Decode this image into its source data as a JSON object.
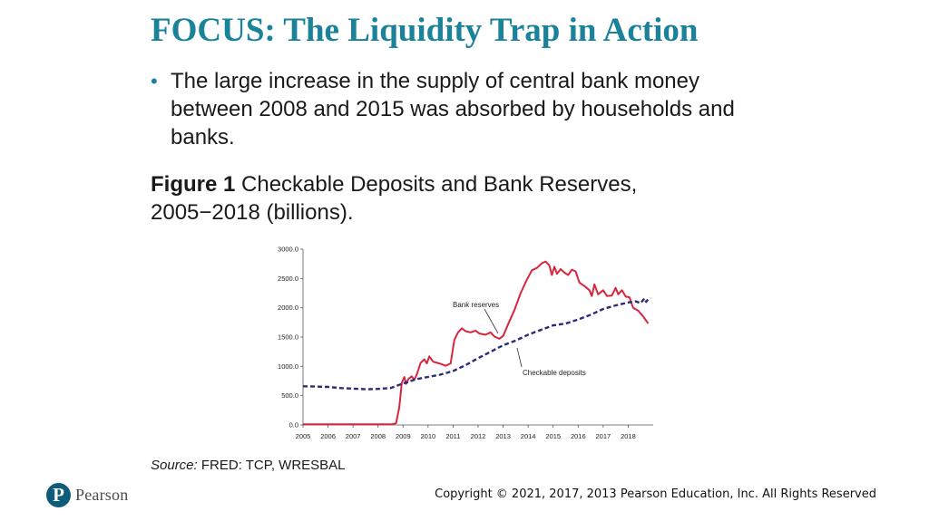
{
  "slide": {
    "title": "FOCUS: The Liquidity Trap in Action",
    "bullet": "The large increase in the supply of central bank money between 2008 and 2015 was absorbed by households and banks.",
    "figure_label": "Figure 1",
    "figure_caption": "Checkable Deposits and Bank Reserves, 2005−2018 (billions).",
    "source_label": "Source:",
    "source_text": "FRED: TCP, WRESBAL",
    "logo_text": "Pearson",
    "logo_mark": "P",
    "copyright": "Copyright © 2021, 2017, 2013 Pearson Education, Inc. All Rights Reserved"
  },
  "colors": {
    "title": "#1a8399",
    "bank_reserves": "#d7263d",
    "checkable_deposits": "#2e2a7a",
    "logo": "#0c5c7a"
  },
  "chart_data": {
    "type": "line",
    "title": "",
    "xlabel": "",
    "ylabel": "",
    "xlim": [
      2005,
      2019
    ],
    "ylim": [
      0,
      3000
    ],
    "x_ticks": [
      "2005",
      "2006",
      "2007",
      "2008",
      "2009",
      "2010",
      "2011",
      "2012",
      "2013",
      "2014",
      "2015",
      "2016",
      "2017",
      "2018"
    ],
    "y_ticks": [
      "0.0",
      "500.0",
      "1000.0",
      "1500.0",
      "2000.0",
      "2500.0",
      "3000.0"
    ],
    "annotations": [
      "Bank reserves",
      "Checkable deposits"
    ],
    "series": [
      {
        "name": "Bank reserves",
        "style": "solid",
        "color": "#d7263d",
        "points": [
          [
            2005.0,
            12
          ],
          [
            2006.0,
            12
          ],
          [
            2007.0,
            12
          ],
          [
            2008.0,
            12
          ],
          [
            2008.55,
            12
          ],
          [
            2008.72,
            30
          ],
          [
            2008.85,
            300
          ],
          [
            2008.95,
            720
          ],
          [
            2009.05,
            820
          ],
          [
            2009.12,
            700
          ],
          [
            2009.22,
            790
          ],
          [
            2009.35,
            830
          ],
          [
            2009.45,
            770
          ],
          [
            2009.55,
            860
          ],
          [
            2009.7,
            1060
          ],
          [
            2009.85,
            1120
          ],
          [
            2009.95,
            1050
          ],
          [
            2010.05,
            1170
          ],
          [
            2010.2,
            1080
          ],
          [
            2010.45,
            1050
          ],
          [
            2010.7,
            1010
          ],
          [
            2010.9,
            1050
          ],
          [
            2011.05,
            1450
          ],
          [
            2011.2,
            1580
          ],
          [
            2011.35,
            1650
          ],
          [
            2011.5,
            1600
          ],
          [
            2011.7,
            1580
          ],
          [
            2011.9,
            1610
          ],
          [
            2012.05,
            1560
          ],
          [
            2012.3,
            1540
          ],
          [
            2012.5,
            1580
          ],
          [
            2012.65,
            1510
          ],
          [
            2012.85,
            1470
          ],
          [
            2013.0,
            1520
          ],
          [
            2013.2,
            1720
          ],
          [
            2013.45,
            1960
          ],
          [
            2013.7,
            2250
          ],
          [
            2013.95,
            2480
          ],
          [
            2014.15,
            2640
          ],
          [
            2014.35,
            2680
          ],
          [
            2014.55,
            2760
          ],
          [
            2014.7,
            2790
          ],
          [
            2014.85,
            2720
          ],
          [
            2014.95,
            2560
          ],
          [
            2015.05,
            2700
          ],
          [
            2015.15,
            2580
          ],
          [
            2015.3,
            2660
          ],
          [
            2015.45,
            2600
          ],
          [
            2015.6,
            2560
          ],
          [
            2015.75,
            2650
          ],
          [
            2015.9,
            2620
          ],
          [
            2016.05,
            2430
          ],
          [
            2016.25,
            2370
          ],
          [
            2016.45,
            2300
          ],
          [
            2016.55,
            2200
          ],
          [
            2016.65,
            2400
          ],
          [
            2016.8,
            2230
          ],
          [
            2017.0,
            2300
          ],
          [
            2017.15,
            2200
          ],
          [
            2017.35,
            2210
          ],
          [
            2017.5,
            2340
          ],
          [
            2017.6,
            2230
          ],
          [
            2017.75,
            2300
          ],
          [
            2017.9,
            2190
          ],
          [
            2018.05,
            2180
          ],
          [
            2018.2,
            2000
          ],
          [
            2018.4,
            1950
          ],
          [
            2018.6,
            1850
          ],
          [
            2018.8,
            1730
          ]
        ]
      },
      {
        "name": "Checkable deposits",
        "style": "dashed",
        "color": "#2e2a7a",
        "points": [
          [
            2005.0,
            660
          ],
          [
            2005.5,
            655
          ],
          [
            2006.0,
            650
          ],
          [
            2006.5,
            630
          ],
          [
            2007.0,
            620
          ],
          [
            2007.5,
            610
          ],
          [
            2008.0,
            615
          ],
          [
            2008.5,
            630
          ],
          [
            2008.95,
            700
          ],
          [
            2009.25,
            740
          ],
          [
            2009.5,
            780
          ],
          [
            2009.75,
            800
          ],
          [
            2010.0,
            820
          ],
          [
            2010.5,
            860
          ],
          [
            2011.0,
            920
          ],
          [
            2011.5,
            1020
          ],
          [
            2012.0,
            1140
          ],
          [
            2012.5,
            1250
          ],
          [
            2013.0,
            1360
          ],
          [
            2013.5,
            1440
          ],
          [
            2014.0,
            1540
          ],
          [
            2014.5,
            1620
          ],
          [
            2015.0,
            1700
          ],
          [
            2015.5,
            1730
          ],
          [
            2016.0,
            1800
          ],
          [
            2016.5,
            1880
          ],
          [
            2017.0,
            1980
          ],
          [
            2017.5,
            2040
          ],
          [
            2018.0,
            2090
          ],
          [
            2018.3,
            2110
          ],
          [
            2018.5,
            2080
          ],
          [
            2018.65,
            2160
          ],
          [
            2018.72,
            2100
          ],
          [
            2018.85,
            2180
          ]
        ]
      }
    ]
  }
}
